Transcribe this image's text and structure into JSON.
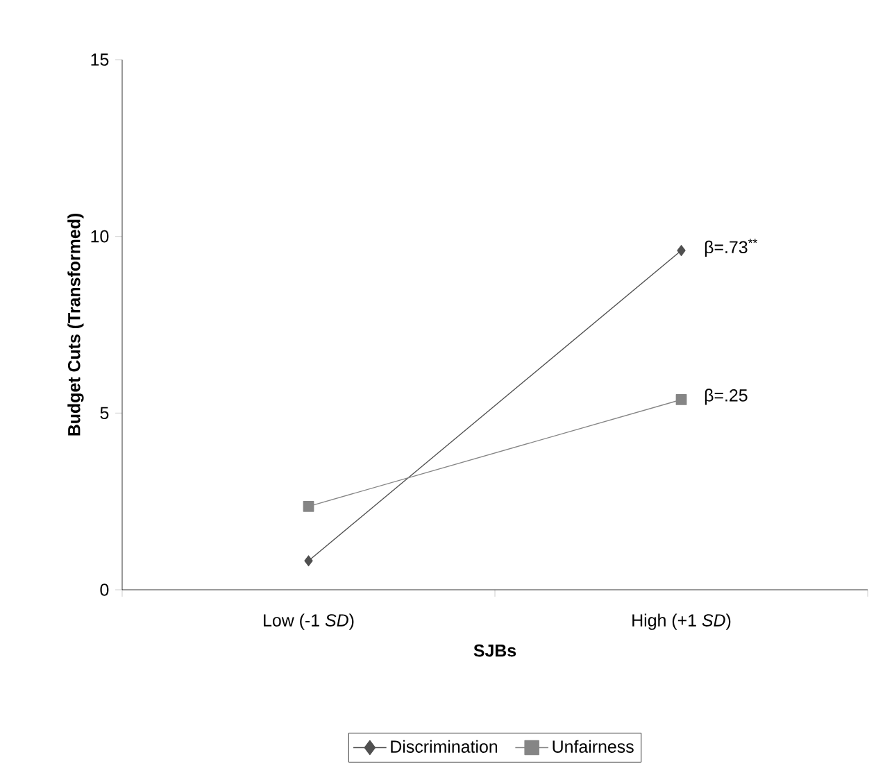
{
  "chart_data": {
    "type": "line",
    "ylabel": "Budget Cuts (Transformed)",
    "xlabel": "SJBs",
    "categories": [
      "Low  (-1 *SD*)",
      "High  (+1 *SD*)"
    ],
    "series": [
      {
        "name": "Discrimination",
        "color": "#505050",
        "marker": "diamond",
        "values": [
          0.82,
          9.6
        ]
      },
      {
        "name": "Unfairness",
        "color": "#858585",
        "marker": "square",
        "values": [
          2.36,
          5.38
        ]
      }
    ],
    "ylim": [
      0,
      15
    ],
    "yticks": [
      0,
      5,
      10,
      15
    ],
    "grid": false,
    "legend": "bottom",
    "line_style": "solid",
    "annotations": [
      {
        "text": "β=.73$^{**}$",
        "x": "High  (+1 *SD*)",
        "y": 9.6
      },
      {
        "text": "β=.25",
        "x": "High  (+1 *SD*)",
        "y": 5.38
      }
    ]
  }
}
